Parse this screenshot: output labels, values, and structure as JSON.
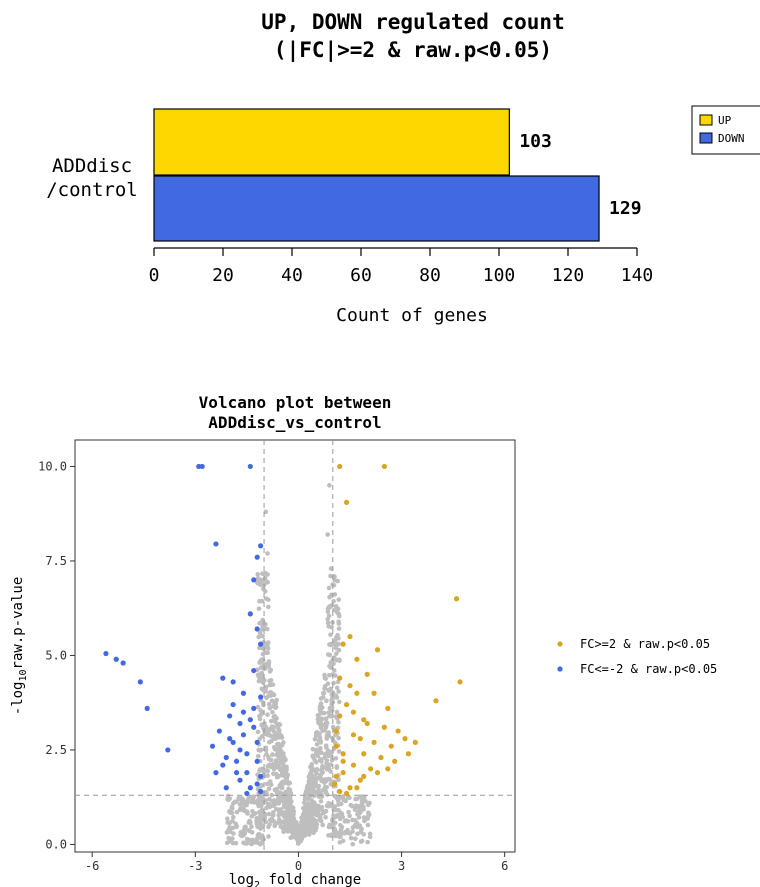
{
  "chart_data": [
    {
      "type": "bar",
      "orientation": "horizontal",
      "title": "UP, DOWN regulated count",
      "subtitle": "(|FC|>=2 & raw.p<0.05)",
      "category_label_lines": [
        "ADDdisc",
        "/control"
      ],
      "xlabel": "Count of genes",
      "xlim": [
        0,
        140
      ],
      "xticks": [
        0,
        20,
        40,
        60,
        80,
        100,
        120,
        140
      ],
      "series": [
        {
          "name": "UP",
          "value": 103,
          "color": "#FFD700"
        },
        {
          "name": "DOWN",
          "value": 129,
          "color": "#4169E1"
        }
      ],
      "legend_position": "top-right"
    },
    {
      "type": "scatter",
      "title": "Volcano plot between",
      "subtitle": "ADDdisc_vs_control",
      "xlabel_main": "log",
      "xlabel_sub": "2",
      "xlabel_rest": " fold change",
      "ylabel_main": "-log",
      "ylabel_sub": "10",
      "ylabel_rest": "raw.p-value",
      "xlim": [
        -6.5,
        6.3
      ],
      "ylim": [
        -0.2,
        10.7
      ],
      "xticks": [
        -6,
        -3,
        0,
        3,
        6
      ],
      "yticks": [
        0.0,
        2.5,
        5.0,
        7.5,
        10.0
      ],
      "ytick_labels": [
        "0.0",
        "2.5",
        "5.0",
        "7.5",
        "10.0"
      ],
      "vlines": [
        -1,
        1
      ],
      "hline": 1.3,
      "grid": false,
      "legend_position": "right",
      "series": [
        {
          "name": "FC>=2 & raw.p<0.05",
          "color": "#DAA520",
          "points": [
            [
              1.2,
              10.0
            ],
            [
              2.5,
              10.0
            ],
            [
              1.4,
              9.05
            ],
            [
              4.6,
              6.5
            ],
            [
              4.7,
              4.3
            ],
            [
              4.0,
              3.8
            ],
            [
              2.3,
              5.15
            ],
            [
              1.5,
              5.5
            ],
            [
              1.3,
              5.3
            ],
            [
              1.7,
              4.9
            ],
            [
              2.0,
              4.5
            ],
            [
              2.2,
              4.0
            ],
            [
              2.6,
              3.6
            ],
            [
              2.9,
              3.0
            ],
            [
              3.1,
              2.8
            ],
            [
              3.4,
              2.7
            ],
            [
              2.7,
              2.6
            ],
            [
              2.4,
              2.3
            ],
            [
              2.1,
              2.0
            ],
            [
              1.8,
              1.7
            ],
            [
              1.5,
              1.5
            ],
            [
              1.2,
              1.4
            ],
            [
              1.1,
              1.8
            ],
            [
              1.3,
              2.4
            ],
            [
              1.6,
              2.9
            ],
            [
              1.9,
              3.3
            ],
            [
              1.4,
              3.7
            ],
            [
              1.2,
              4.4
            ],
            [
              1.1,
              3.0
            ],
            [
              1.6,
              2.1
            ],
            [
              1.9,
              2.4
            ],
            [
              2.2,
              2.7
            ],
            [
              2.5,
              3.1
            ],
            [
              2.8,
              2.2
            ],
            [
              3.2,
              2.4
            ],
            [
              1.3,
              1.9
            ],
            [
              1.7,
              1.5
            ],
            [
              2.0,
              3.2
            ],
            [
              1.5,
              4.2
            ],
            [
              1.1,
              2.6
            ],
            [
              1.4,
              1.35
            ],
            [
              1.8,
              2.8
            ],
            [
              2.3,
              1.9
            ],
            [
              1.2,
              3.4
            ],
            [
              1.6,
              3.5
            ],
            [
              1.05,
              1.6
            ],
            [
              1.9,
              1.8
            ],
            [
              2.6,
              2.0
            ],
            [
              1.3,
              2.2
            ],
            [
              1.7,
              4.0
            ]
          ]
        },
        {
          "name": "FC<=-2 & raw.p<0.05",
          "color": "#4169E1",
          "points": [
            [
              -2.9,
              10.0
            ],
            [
              -2.8,
              10.0
            ],
            [
              -1.4,
              10.0
            ],
            [
              -2.4,
              7.95
            ],
            [
              -1.1,
              7.9
            ],
            [
              -1.2,
              7.6
            ],
            [
              -1.3,
              7.0
            ],
            [
              -1.4,
              6.1
            ],
            [
              -1.2,
              5.7
            ],
            [
              -1.1,
              5.3
            ],
            [
              -5.6,
              5.05
            ],
            [
              -5.3,
              4.9
            ],
            [
              -5.1,
              4.8
            ],
            [
              -4.6,
              4.3
            ],
            [
              -4.4,
              3.6
            ],
            [
              -3.8,
              2.5
            ],
            [
              -2.2,
              4.4
            ],
            [
              -1.9,
              4.3
            ],
            [
              -1.6,
              4.0
            ],
            [
              -1.3,
              3.6
            ],
            [
              -2.0,
              3.4
            ],
            [
              -2.3,
              3.0
            ],
            [
              -1.9,
              2.7
            ],
            [
              -1.5,
              2.4
            ],
            [
              -1.2,
              2.2
            ],
            [
              -2.1,
              2.3
            ],
            [
              -2.4,
              1.9
            ],
            [
              -1.7,
              1.7
            ],
            [
              -1.4,
              1.5
            ],
            [
              -1.1,
              1.4
            ],
            [
              -1.3,
              3.1
            ],
            [
              -1.7,
              3.2
            ],
            [
              -2.1,
              1.5
            ],
            [
              -1.5,
              1.9
            ],
            [
              -1.2,
              2.7
            ],
            [
              -1.8,
              2.2
            ],
            [
              -1.1,
              1.8
            ],
            [
              -1.6,
              2.9
            ],
            [
              -2.5,
              2.6
            ],
            [
              -1.9,
              3.7
            ],
            [
              -1.3,
              4.6
            ],
            [
              -1.1,
              3.9
            ],
            [
              -1.4,
              3.3
            ],
            [
              -1.7,
              2.5
            ],
            [
              -2.2,
              2.1
            ],
            [
              -1.2,
              1.6
            ],
            [
              -1.5,
              1.35
            ],
            [
              -1.8,
              1.9
            ],
            [
              -2.0,
              2.8
            ],
            [
              -1.6,
              3.5
            ]
          ]
        },
        {
          "name": "",
          "color": "#BEBEBE",
          "generated": "background-nonsignificant"
        }
      ]
    }
  ]
}
